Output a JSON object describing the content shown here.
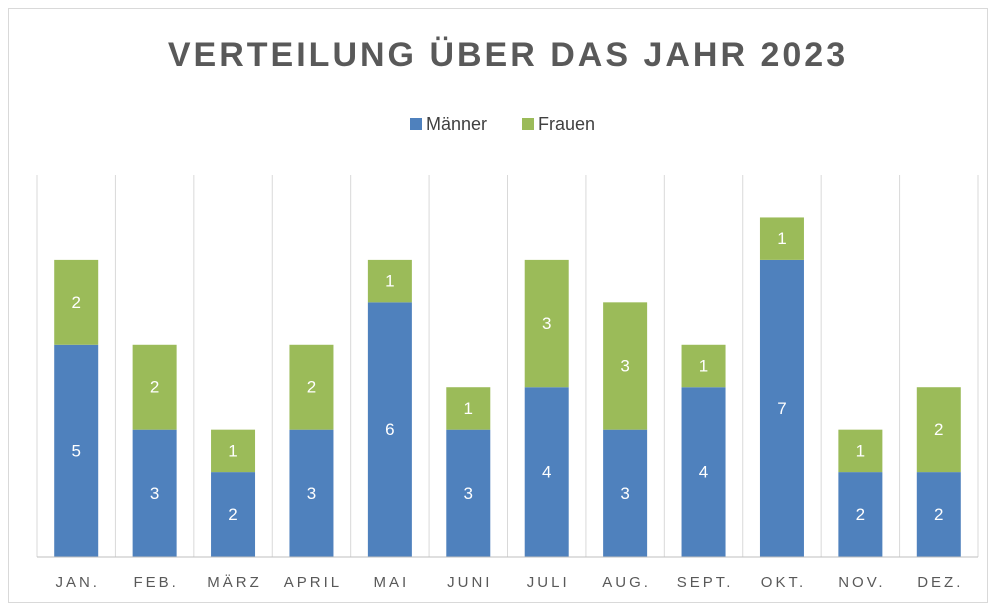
{
  "chart_data": {
    "type": "bar",
    "stacked": true,
    "title": "VERTEILUNG ÜBER DAS JAHR 2023",
    "categories": [
      "JAN.",
      "FEB.",
      "MÄRZ",
      "APRIL",
      "MAI",
      "JUNI",
      "JULI",
      "AUG.",
      "SEPT.",
      "OKT.",
      "NOV.",
      "DEZ."
    ],
    "series": [
      {
        "name": "Männer",
        "color": "#4f81bd",
        "values": [
          5,
          3,
          2,
          3,
          6,
          3,
          4,
          3,
          4,
          7,
          2,
          2
        ]
      },
      {
        "name": "Frauen",
        "color": "#9bbb59",
        "values": [
          2,
          2,
          1,
          2,
          1,
          1,
          3,
          3,
          1,
          1,
          1,
          2
        ]
      }
    ],
    "ylim": [
      0,
      9
    ],
    "legend": "top",
    "grid": true
  }
}
